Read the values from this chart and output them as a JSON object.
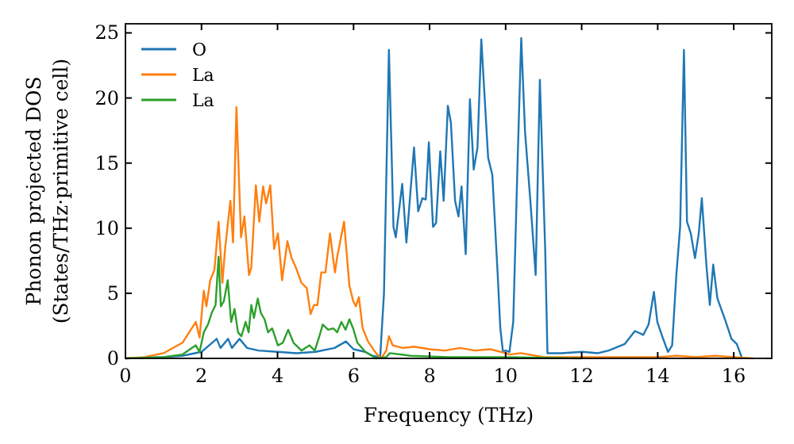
{
  "chart_data": {
    "type": "line",
    "xlabel": "Frequency (THz)",
    "ylabel": "Phonon projected DOS\n(States/THz·primitive cell)",
    "xlim": [
      0,
      17
    ],
    "ylim": [
      0,
      25.7
    ],
    "xticks": [
      0,
      2,
      4,
      6,
      8,
      10,
      12,
      14,
      16
    ],
    "yticks": [
      0,
      5,
      10,
      15,
      20,
      25
    ],
    "legend": "top left",
    "grid": false,
    "marker": "none",
    "line_style": "solid",
    "series": [
      {
        "name": "O",
        "color": "#1f77b4",
        "x": [
          0,
          1,
          1.5,
          2,
          2.2,
          2.4,
          2.5,
          2.7,
          2.8,
          3,
          3.2,
          3.5,
          4,
          4.5,
          5,
          5.5,
          5.8,
          6,
          6.3,
          6.5,
          6.7,
          6.8,
          6.93,
          7.05,
          7.11,
          7.28,
          7.39,
          7.59,
          7.7,
          7.81,
          7.9,
          7.98,
          8.09,
          8.17,
          8.28,
          8.37,
          8.48,
          8.56,
          8.67,
          8.76,
          8.84,
          8.95,
          9.06,
          9.16,
          9.26,
          9.36,
          9.54,
          9.65,
          9.79,
          9.86,
          9.93,
          10,
          10.1,
          10.2,
          10.32,
          10.41,
          10.51,
          10.65,
          10.79,
          10.9,
          11.04,
          11.1,
          11.46,
          12.02,
          12.43,
          12.71,
          13.13,
          13.4,
          13.62,
          13.76,
          13.9,
          13.99,
          14.13,
          14.27,
          14.38,
          14.49,
          14.59,
          14.69,
          14.77,
          14.87,
          14.98,
          15.08,
          15.16,
          15.28,
          15.37,
          15.46,
          15.57,
          15.78,
          15.94,
          16.08,
          16.22
        ],
        "values": [
          0,
          0.1,
          0.2,
          0.5,
          1,
          1.5,
          0.8,
          1.5,
          0.8,
          1.5,
          0.8,
          0.6,
          0.5,
          0.4,
          0.5,
          0.8,
          1.3,
          0.7,
          0.5,
          0.2,
          0.1,
          5,
          23.7,
          10.1,
          9.3,
          13.4,
          8.9,
          16.2,
          11.3,
          12.3,
          12.2,
          16.6,
          10.1,
          10.4,
          15.9,
          12.1,
          19.4,
          18.1,
          12.1,
          10.9,
          13.2,
          8,
          19.9,
          14.5,
          16.2,
          24.5,
          15.4,
          14.1,
          6.5,
          2.3,
          0.5,
          0.6,
          0.5,
          2.8,
          15.7,
          24.6,
          17.4,
          12.1,
          6.4,
          21.4,
          8.4,
          0.4,
          0.4,
          0.5,
          0.4,
          0.6,
          1.1,
          2.1,
          1.8,
          2.6,
          5.1,
          2.8,
          1.6,
          0.5,
          1,
          6.4,
          10.1,
          23.7,
          10.5,
          9.6,
          7.7,
          9.6,
          12.3,
          7.2,
          4.1,
          7.2,
          4.6,
          2.9,
          1.5,
          1.1,
          0
        ]
      },
      {
        "name": "La",
        "color": "#ff7f0e",
        "x": [
          0,
          0.5,
          1,
          1.5,
          1.85,
          1.95,
          2.06,
          2.13,
          2.23,
          2.34,
          2.45,
          2.55,
          2.62,
          2.76,
          2.83,
          2.92,
          3.04,
          3.13,
          3.25,
          3.31,
          3.43,
          3.52,
          3.62,
          3.7,
          3.81,
          3.91,
          4.01,
          4.12,
          4.26,
          4.37,
          4.48,
          4.63,
          4.77,
          4.87,
          4.96,
          5.05,
          5.15,
          5.26,
          5.38,
          5.51,
          5.57,
          5.75,
          5.89,
          5.99,
          6.06,
          6.14,
          6.24,
          6.38,
          6.59,
          6.73,
          6.86,
          6.93,
          7.03,
          7.3,
          7.6,
          8,
          8.4,
          8.8,
          9.2,
          9.6,
          10,
          10.1,
          10.4,
          11,
          12,
          13,
          14,
          14.5,
          15,
          15.5,
          16,
          16.5
        ],
        "values": [
          0,
          0.1,
          0.4,
          1.2,
          2.8,
          1.6,
          5.2,
          4,
          6,
          6.8,
          10.5,
          5.8,
          8.4,
          12.1,
          8.9,
          19.3,
          9.3,
          10.9,
          6.4,
          7,
          13.3,
          10.5,
          13.2,
          11.9,
          13.3,
          8.4,
          9.6,
          6,
          9,
          7.7,
          7,
          5.8,
          5.4,
          3.4,
          4.1,
          4.1,
          6.6,
          6.6,
          9.6,
          6.6,
          7.8,
          10.5,
          5.6,
          4.4,
          4,
          4.7,
          2.3,
          1.3,
          0.4,
          0,
          0.6,
          1.7,
          1,
          0.8,
          0.9,
          0.7,
          0.6,
          0.8,
          0.6,
          0.7,
          0.4,
          0.3,
          0.4,
          0.1,
          0.1,
          0.1,
          0.1,
          0.2,
          0.1,
          0.2,
          0.1,
          0
        ]
      },
      {
        "name": "La",
        "color": "#2ca02c",
        "x": [
          0,
          1,
          1.5,
          1.85,
          1.95,
          2.06,
          2.17,
          2.27,
          2.37,
          2.45,
          2.51,
          2.59,
          2.69,
          2.78,
          2.87,
          2.96,
          3.05,
          3.16,
          3.24,
          3.31,
          3.38,
          3.48,
          3.56,
          3.66,
          3.75,
          3.86,
          4.01,
          4.14,
          4.28,
          4.42,
          4.63,
          4.84,
          4.98,
          5.09,
          5.19,
          5.33,
          5.47,
          5.57,
          5.68,
          5.79,
          5.89,
          5.99,
          6.1,
          6.31,
          6.59,
          6.86,
          6.95,
          7.5,
          8.5,
          10,
          12
        ],
        "values": [
          0,
          0.1,
          0.3,
          1,
          0.5,
          2,
          2.6,
          3.5,
          4.1,
          7.8,
          4,
          4.4,
          6,
          2.8,
          3.8,
          2,
          1.7,
          2.8,
          2,
          4.1,
          3.1,
          4.6,
          3.5,
          3,
          2,
          2.3,
          1,
          1.2,
          2.2,
          1.2,
          0.6,
          1,
          0.6,
          1.6,
          2.6,
          2.2,
          2.3,
          2,
          2.8,
          2.2,
          3,
          2.3,
          1.2,
          0.5,
          0,
          0.1,
          0.4,
          0.2,
          0.1,
          0.1,
          0
        ]
      }
    ]
  }
}
